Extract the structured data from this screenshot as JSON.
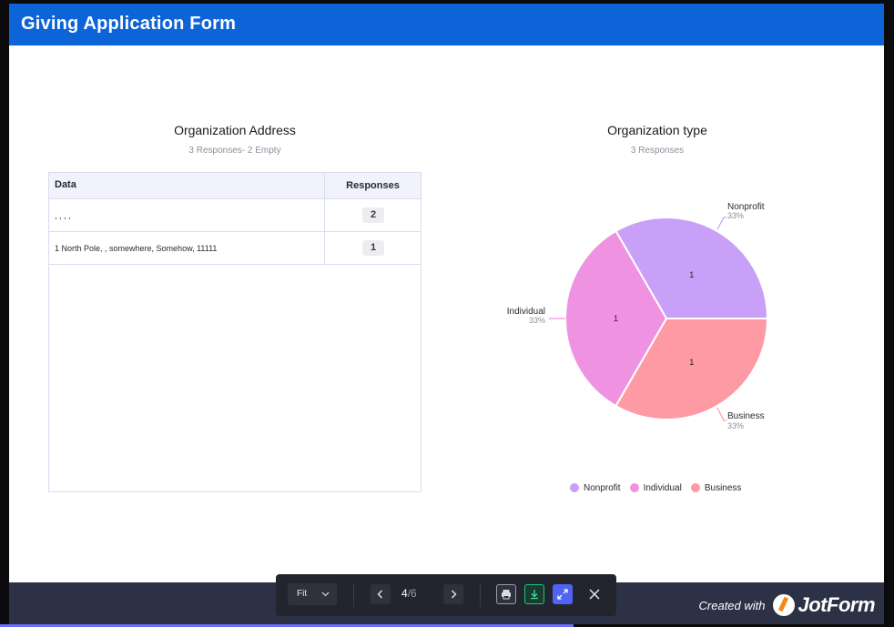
{
  "header": {
    "title": "Giving Application Form"
  },
  "address_section": {
    "title": "Organization Address",
    "subtitle": "3 Responses- 2 Empty",
    "columns": [
      "Data",
      "Responses"
    ],
    "rows": [
      {
        "data": ", , , ,",
        "responses": "2"
      },
      {
        "data": "1 North Pole, , somewhere, Somehow, 11111",
        "responses": "1"
      }
    ]
  },
  "type_section": {
    "title": "Organization type",
    "subtitle": "3 Responses"
  },
  "chart_data": {
    "type": "pie",
    "categories": [
      "Nonprofit",
      "Individual",
      "Business"
    ],
    "values": [
      1,
      1,
      1
    ],
    "percent_labels": [
      "33%",
      "33%",
      "33%"
    ],
    "colors": [
      "#c9a0f7",
      "#f092e2",
      "#fd9aa4"
    ],
    "legend_position": "bottom"
  },
  "footer": {
    "created_text": "Created with",
    "brand": "JotForm"
  },
  "toolbar": {
    "zoom": "Fit",
    "prev_icon": "chevron-left-icon",
    "next_icon": "chevron-right-icon",
    "current_page": "4",
    "total_pages": "/6",
    "print_icon": "printer-icon",
    "download_icon": "download-icon",
    "fullscreen_icon": "expand-icon",
    "close_icon": "close-icon"
  }
}
